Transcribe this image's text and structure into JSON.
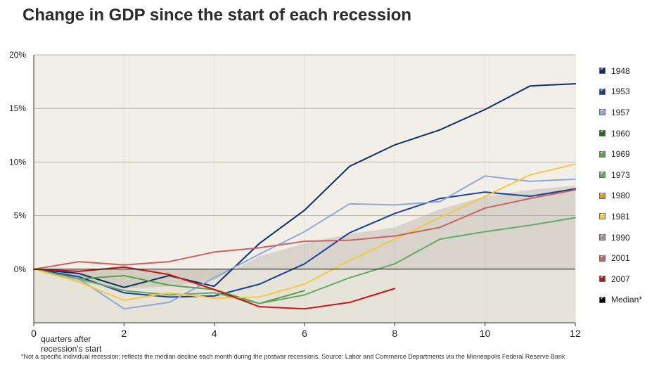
{
  "title": "Change in GDP since the start of each recession",
  "footnote": "*Not a specific individual recession; reflects the median decline each month during the postwar recessions. Source: Labor and Commerce Departments via the Minneapolis Federal Reserve Bank",
  "xnote_line1": "quarters after",
  "xnote_line2": "recession's start",
  "chart_data": {
    "type": "line",
    "xlabel": "quarters after recession's start",
    "ylabel": "",
    "xlim": [
      0,
      12
    ],
    "ylim": [
      -5,
      20
    ],
    "xticks": [
      0,
      2,
      4,
      6,
      8,
      10,
      12
    ],
    "xtick_labels": [
      "0",
      "2",
      "4",
      "6",
      "8",
      "10",
      "12"
    ],
    "yticks": [
      0,
      5,
      10,
      15,
      20
    ],
    "ytick_labels": [
      "0%",
      "5%",
      "10%",
      "15%",
      "20%"
    ],
    "grid": "horizontal",
    "legend_position": "right",
    "median_band": {
      "name": "Median*",
      "x": [
        0,
        1,
        2,
        3,
        4,
        5,
        6,
        7,
        8,
        9,
        10,
        11,
        12
      ],
      "values": [
        0,
        -1.2,
        -1.8,
        -1.6,
        -1.0,
        1.2,
        2.4,
        3.3,
        3.9,
        5.6,
        6.8,
        7.4,
        7.8
      ]
    },
    "series": [
      {
        "name": "1948",
        "color": "#0b2f6b",
        "x": [
          0,
          1,
          2,
          3,
          4,
          5,
          6,
          7,
          8,
          9,
          10,
          11,
          12
        ],
        "values": [
          0,
          -0.4,
          -1.7,
          -0.6,
          -1.6,
          2.4,
          5.5,
          9.6,
          11.6,
          13.0,
          14.9,
          17.1,
          17.3
        ]
      },
      {
        "name": "1953",
        "color": "#1a3f99",
        "x": [
          0,
          1,
          2,
          3,
          4,
          5,
          6,
          7,
          8,
          9,
          10,
          11,
          12
        ],
        "values": [
          0,
          -0.7,
          -2.2,
          -2.6,
          -2.5,
          -1.4,
          0.5,
          3.4,
          5.2,
          6.6,
          7.2,
          6.8,
          7.5
        ]
      },
      {
        "name": "1957",
        "color": "#8fa6d8",
        "x": [
          0,
          1,
          2,
          3,
          4,
          5,
          6,
          7,
          8,
          9,
          10,
          11,
          12
        ],
        "values": [
          0,
          -0.9,
          -3.7,
          -3.1,
          -0.8,
          1.4,
          3.5,
          6.1,
          6.0,
          6.3,
          8.7,
          8.2,
          8.4
        ]
      },
      {
        "name": "1969",
        "color": "#5a9e4e",
        "x": [
          0,
          1,
          2,
          3,
          4,
          5,
          6
        ],
        "values": [
          0,
          -0.9,
          -0.6,
          -1.5,
          -1.9,
          -3.2,
          -2.0
        ]
      },
      {
        "name": "1973",
        "color": "#66a86a",
        "x": [
          0,
          1,
          2,
          3,
          4,
          5,
          6,
          7,
          8,
          9,
          10,
          11,
          12
        ],
        "values": [
          0,
          -0.9,
          -2.0,
          -2.4,
          -2.2,
          -3.2,
          -2.4,
          -0.8,
          0.5,
          2.8,
          3.5,
          4.1,
          4.8
        ]
      },
      {
        "name": "1981",
        "color": "#f5c842",
        "x": [
          0,
          1,
          2,
          3,
          4,
          5,
          6,
          7,
          8,
          9,
          10,
          11,
          12
        ],
        "values": [
          0,
          -1.2,
          -2.9,
          -2.2,
          -2.7,
          -2.6,
          -1.4,
          0.8,
          2.8,
          4.8,
          6.8,
          8.8,
          9.8
        ]
      },
      {
        "name": "2001",
        "color": "#c96262",
        "x": [
          0,
          1,
          2,
          3,
          4,
          5,
          6,
          7,
          8,
          9,
          10,
          11,
          12
        ],
        "values": [
          0,
          0.7,
          0.4,
          0.7,
          1.6,
          2.0,
          2.6,
          2.7,
          3.1,
          3.9,
          5.7,
          6.6,
          7.4
        ]
      },
      {
        "name": "2007",
        "color": "#c81414",
        "x": [
          0,
          1,
          2,
          3,
          4,
          5,
          6,
          7,
          8
        ],
        "values": [
          0,
          -0.2,
          0.2,
          -0.5,
          -1.9,
          -3.5,
          -3.7,
          -3.1,
          -1.8
        ]
      }
    ]
  },
  "legend": [
    {
      "label": "1948",
      "color": "#0b2f6b"
    },
    {
      "label": "1953",
      "color": "#1a3f99"
    },
    {
      "label": "1957",
      "color": "#8fa6d8"
    },
    {
      "label": "1960",
      "color": "#1e6b1e"
    },
    {
      "label": "1969",
      "color": "#5a9e4e"
    },
    {
      "label": "1973",
      "color": "#66a86a"
    },
    {
      "label": "1980",
      "color": "#d4a20e"
    },
    {
      "label": "1981",
      "color": "#f5c842"
    },
    {
      "label": "1990",
      "color": "#a88e88"
    },
    {
      "label": "2001",
      "color": "#c96262"
    },
    {
      "label": "2007",
      "color": "#c81414"
    },
    {
      "label": "Median*",
      "color": "#000000"
    }
  ]
}
